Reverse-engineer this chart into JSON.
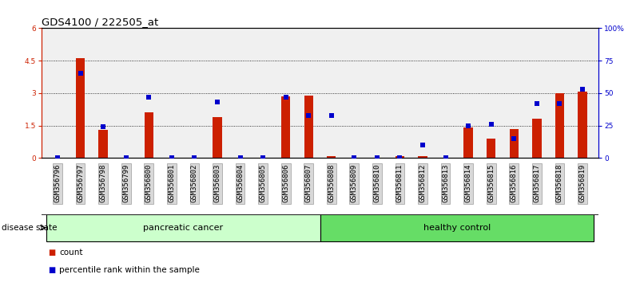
{
  "title": "GDS4100 / 222505_at",
  "samples": [
    "GSM356796",
    "GSM356797",
    "GSM356798",
    "GSM356799",
    "GSM356800",
    "GSM356801",
    "GSM356802",
    "GSM356803",
    "GSM356804",
    "GSM356805",
    "GSM356806",
    "GSM356807",
    "GSM356808",
    "GSM356809",
    "GSM356810",
    "GSM356811",
    "GSM356812",
    "GSM356813",
    "GSM356814",
    "GSM356815",
    "GSM356816",
    "GSM356817",
    "GSM356818",
    "GSM356819"
  ],
  "counts": [
    0.0,
    4.6,
    1.3,
    0.0,
    2.1,
    0.0,
    0.0,
    1.9,
    0.0,
    0.0,
    2.85,
    2.9,
    0.08,
    0.0,
    0.0,
    0.08,
    0.08,
    0.0,
    1.4,
    0.9,
    1.35,
    1.8,
    3.0,
    3.05
  ],
  "percentiles": [
    0.0,
    65.0,
    24.0,
    0.0,
    47.0,
    0.0,
    0.0,
    43.0,
    0.0,
    0.0,
    47.0,
    33.0,
    33.0,
    0.0,
    0.0,
    0.0,
    10.0,
    0.0,
    25.0,
    26.0,
    15.0,
    42.0,
    42.0,
    53.0
  ],
  "n_cancer": 12,
  "n_healthy": 12,
  "cancer_label": "pancreatic cancer",
  "healthy_label": "healthy control",
  "cancer_color": "#ccffcc",
  "healthy_color": "#66dd66",
  "bar_color": "#cc2000",
  "dot_color": "#0000cc",
  "plot_bg": "#f0f0f0",
  "yticks_left": [
    0.0,
    1.5,
    3.0,
    4.5,
    6.0
  ],
  "ytick_labels_left": [
    "0",
    "1.5",
    "3",
    "4.5",
    "6"
  ],
  "ylim_left": [
    0,
    6
  ],
  "yticks_right": [
    0,
    25,
    50,
    75,
    100
  ],
  "ytick_labels_right": [
    "0",
    "25",
    "50",
    "75",
    "100%"
  ],
  "ylim_right": [
    0,
    100
  ],
  "title_fontsize": 9.5,
  "tick_fontsize": 6.5,
  "label_fontsize": 8,
  "count_legend": "count",
  "pct_legend": "percentile rank within the sample",
  "disease_state_label": "disease state",
  "bar_width": 0.4
}
